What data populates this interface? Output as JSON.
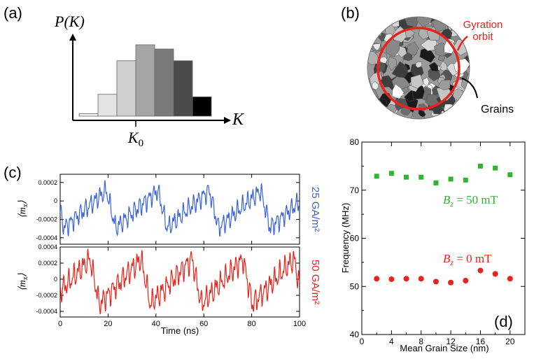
{
  "panel_labels": {
    "a": "(a)",
    "b": "(b)",
    "c": "(c)",
    "d": "(d)"
  },
  "colors": {
    "blue": "#3a63d8",
    "red": "#e8231b",
    "green": "#2fb52f",
    "black": "#000000"
  },
  "chart_data": [
    {
      "id": "a",
      "type": "bar",
      "title": "",
      "ylabel": "P(K)",
      "xlabel": "K",
      "xtick": "K0",
      "values": [
        0.03,
        0.26,
        0.66,
        0.85,
        0.8,
        0.66,
        0.23
      ],
      "bar_colors": [
        "#f2f2f2",
        "#e3e3e3",
        "#cfcfcf",
        "#a5a5a5",
        "#7a7a7a",
        "#4a4a4a",
        "#000000"
      ],
      "ylim": [
        0,
        1
      ]
    },
    {
      "id": "b",
      "type": "diagram",
      "labels": {
        "orbit": [
          "Gyration",
          "orbit"
        ],
        "grains": "Grains"
      }
    },
    {
      "id": "c-top",
      "type": "line",
      "ylabel": "⟨m_x⟩",
      "series_label": "25 GA/m²",
      "color": "#3a63d8",
      "ylim": [
        -0.00047,
        0.00029
      ],
      "yticks": [
        "0.0002",
        "0",
        "-0.0002",
        "-0.0004"
      ],
      "ytick_values": [
        0.0002,
        0,
        -0.0002,
        -0.0004
      ],
      "period_ns": 21.5,
      "phase_ns": 19.3,
      "offset": -9e-05,
      "amplitude": 0.00026
    },
    {
      "id": "c-bottom",
      "type": "line",
      "ylabel": "⟨m_x⟩",
      "series_label": "50 GA/m²",
      "color": "#e8231b",
      "xlabel": "Time (ns)",
      "xlim": [
        0,
        100
      ],
      "xticks": [
        "0",
        "20",
        "40",
        "60",
        "80",
        "100"
      ],
      "xtick_values": [
        0,
        20,
        40,
        60,
        80,
        100
      ],
      "ylim": [
        -0.00047,
        0.0004
      ],
      "yticks": [
        "0.0004",
        "0.0002",
        "0",
        "-0.0002",
        "-0.0004"
      ],
      "ytick_values": [
        0.0004,
        0.0002,
        0,
        -0.0002,
        -0.0004
      ],
      "period_ns": 21.3,
      "phase_ns": 12.5,
      "offset": -3e-05,
      "amplitude": 0.00036
    },
    {
      "id": "d",
      "type": "scatter",
      "xlabel": "Mean Grain Size (nm)",
      "ylabel": "Frequency (MHz)",
      "xlim": [
        0,
        22
      ],
      "ylim": [
        40,
        80
      ],
      "xticks": [
        "0",
        "4",
        "8",
        "12",
        "16",
        "20"
      ],
      "xtick_values": [
        0,
        4,
        8,
        12,
        16,
        20
      ],
      "yticks": [
        "40",
        "50",
        "60",
        "70",
        "80"
      ],
      "ytick_values": [
        40,
        50,
        60,
        70,
        80
      ],
      "series": [
        {
          "name": "B_z = 50 mT",
          "label_text": "B_z = 50 mT",
          "marker": "square",
          "color": "#2fb52f",
          "x": [
            2,
            4,
            6,
            8,
            10,
            12,
            14,
            16,
            18,
            20
          ],
          "y": [
            72.9,
            73.5,
            72.7,
            72.7,
            71.5,
            72.3,
            72.1,
            75.0,
            74.6,
            73.2
          ]
        },
        {
          "name": "B_z = 0 mT",
          "label_text": "B_z = 0 mT",
          "marker": "circle",
          "color": "#e8231b",
          "x": [
            2,
            4,
            6,
            8,
            10,
            12,
            14,
            16,
            18,
            20
          ],
          "y": [
            51.6,
            51.5,
            51.6,
            51.6,
            51.0,
            50.8,
            51.2,
            53.3,
            52.6,
            51.6
          ]
        }
      ]
    }
  ]
}
